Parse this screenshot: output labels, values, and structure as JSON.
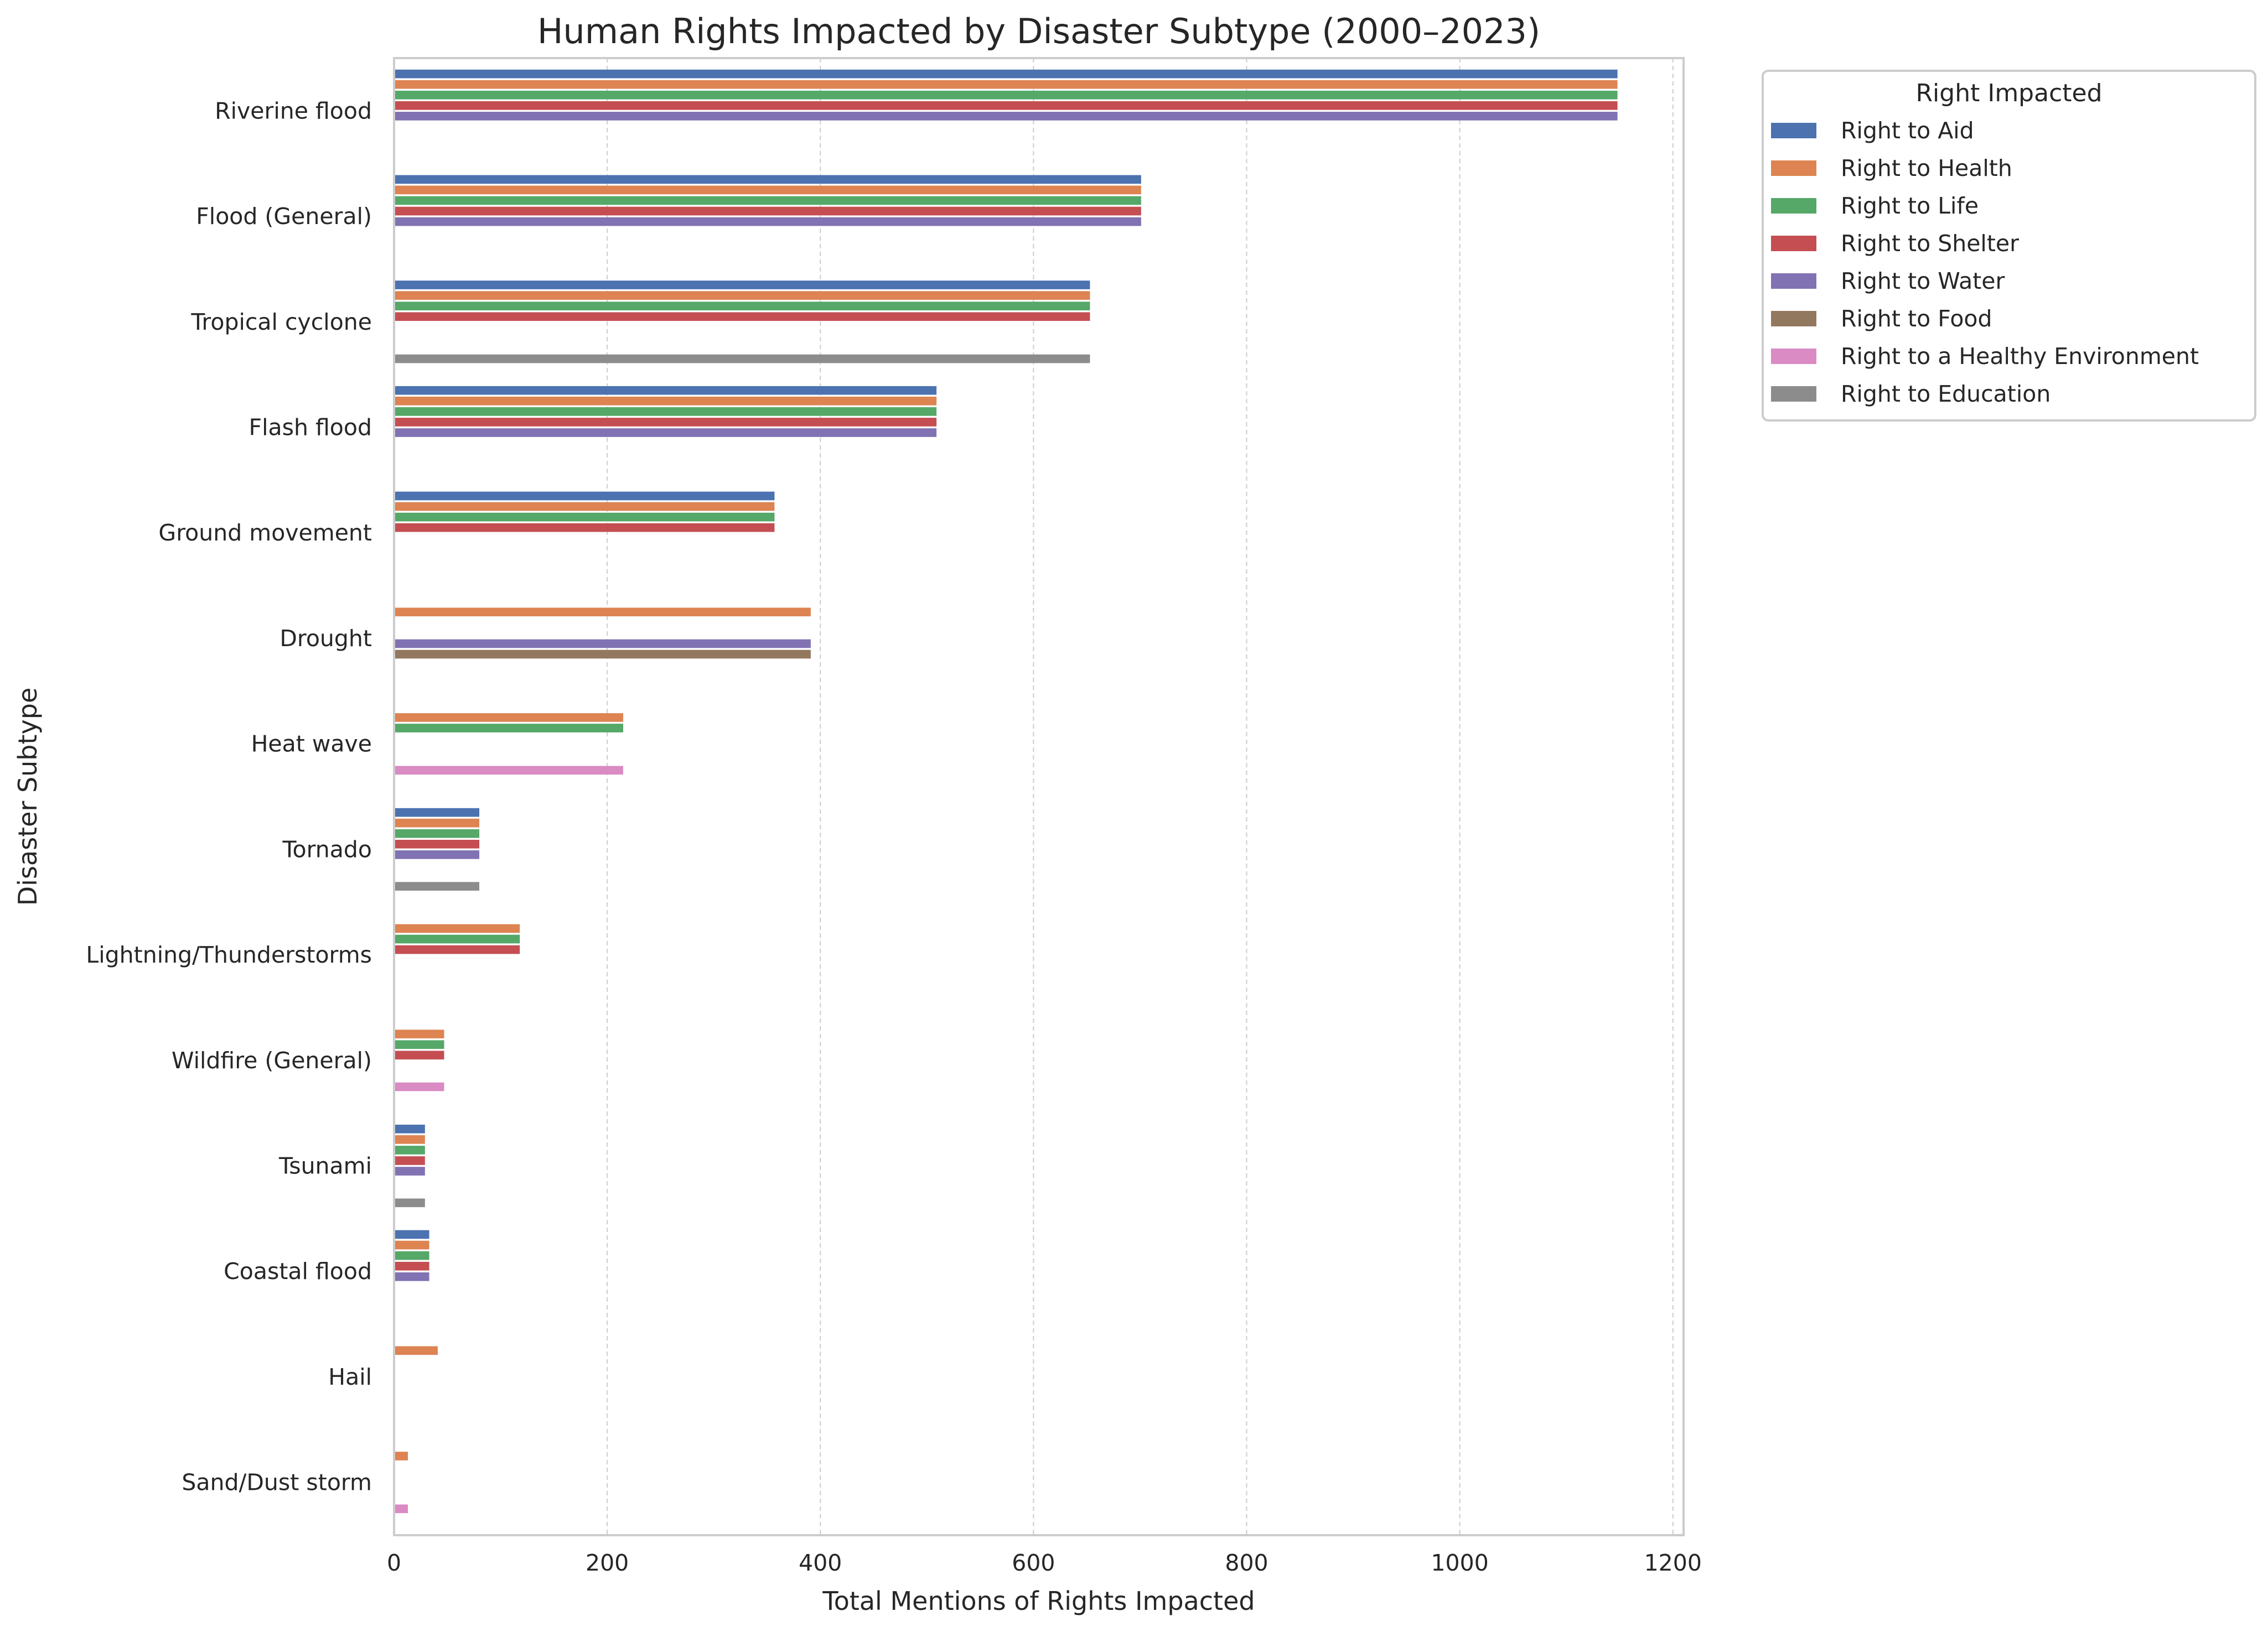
{
  "chart_data": {
    "type": "bar",
    "orientation": "horizontal",
    "title": "Human Rights Impacted by Disaster Subtype (2000–2023)",
    "xlabel": "Total Mentions of Rights Impacted",
    "ylabel": "Disaster Subtype",
    "xlim": [
      0,
      1210
    ],
    "xticks": [
      0,
      200,
      400,
      600,
      800,
      1000,
      1200
    ],
    "grid": "vertical dashed",
    "legend": {
      "title": "Right Impacted",
      "placement": "outside-top-right"
    },
    "categories": [
      "Riverine flood",
      "Flood (General)",
      "Tropical cyclone",
      "Flash flood",
      "Ground movement",
      "Drought",
      "Heat wave",
      "Tornado",
      "Lightning/Thunderstorms",
      "Wildfire (General)",
      "Tsunami",
      "Coastal flood",
      "Hail",
      "Sand/Dust storm"
    ],
    "series": [
      {
        "name": "Right to Aid",
        "color": "#4c72b0",
        "values": [
          1148,
          701,
          653,
          509,
          357,
          null,
          null,
          80,
          null,
          null,
          29,
          33,
          null,
          null
        ]
      },
      {
        "name": "Right to Health",
        "color": "#dd8452",
        "values": [
          1148,
          701,
          653,
          509,
          357,
          391,
          215,
          80,
          118,
          47,
          29,
          33,
          41,
          13
        ]
      },
      {
        "name": "Right to Life",
        "color": "#55a868",
        "values": [
          1148,
          701,
          653,
          509,
          357,
          null,
          215,
          80,
          118,
          47,
          29,
          33,
          null,
          null
        ]
      },
      {
        "name": "Right to Shelter",
        "color": "#c44e52",
        "values": [
          1148,
          701,
          653,
          509,
          357,
          null,
          null,
          80,
          118,
          47,
          29,
          33,
          null,
          null
        ]
      },
      {
        "name": "Right to Water",
        "color": "#8172b3",
        "values": [
          1148,
          701,
          null,
          509,
          null,
          391,
          null,
          80,
          null,
          null,
          29,
          33,
          null,
          null
        ]
      },
      {
        "name": "Right to Food",
        "color": "#937860",
        "values": [
          null,
          null,
          null,
          null,
          null,
          391,
          null,
          null,
          null,
          null,
          null,
          null,
          null,
          null
        ]
      },
      {
        "name": "Right to a Healthy Environment",
        "color": "#da8bc3",
        "values": [
          null,
          null,
          null,
          null,
          null,
          null,
          215,
          null,
          null,
          47,
          null,
          null,
          null,
          13
        ]
      },
      {
        "name": "Right to Education",
        "color": "#8c8c8c",
        "values": [
          null,
          null,
          653,
          null,
          null,
          null,
          null,
          80,
          null,
          null,
          29,
          null,
          null,
          null
        ]
      }
    ]
  }
}
